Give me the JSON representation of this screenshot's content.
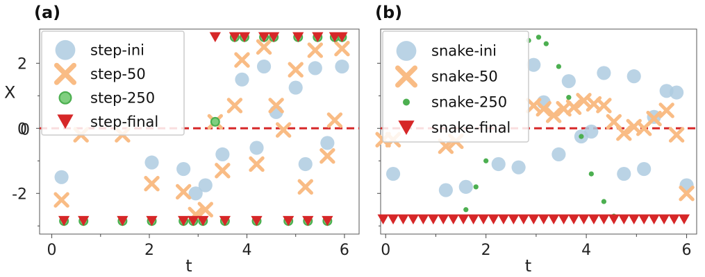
{
  "chart_data": [
    {
      "type": "scatter",
      "panel_label": "(a)",
      "xlabel": "t",
      "ylabel": "X",
      "xlim": [
        -0.25,
        6.3
      ],
      "ylim": [
        -3.25,
        3.05
      ],
      "xticks": [
        "0",
        "2",
        "4",
        "6"
      ],
      "yticks": [
        "-2",
        "0",
        "2"
      ],
      "legend_position": "top-left",
      "reference_line": {
        "y": 0,
        "style": "dashed",
        "color": "#d62728"
      },
      "colors": {
        "ini": "#aecbe0",
        "s50": "#f9bc85",
        "s250": "#4caf50",
        "final": "#d62728"
      },
      "series": [
        {
          "name": "step-ini",
          "marker": "circle",
          "x": [
            0.2,
            2.05,
            2.7,
            2.95,
            3.15,
            3.5,
            3.9,
            4.2,
            4.35,
            4.6,
            5.0,
            5.2,
            5.4,
            5.65,
            5.95
          ],
          "y": [
            -1.5,
            -1.05,
            -1.25,
            -2.0,
            -1.75,
            -0.8,
            1.5,
            -0.6,
            1.9,
            0.5,
            1.25,
            -1.1,
            1.85,
            -0.45,
            1.9
          ]
        },
        {
          "name": "step-50",
          "marker": "x",
          "x": [
            0.2,
            0.6,
            1.45,
            2.05,
            2.7,
            2.95,
            3.15,
            3.35,
            3.5,
            3.75,
            3.9,
            4.2,
            4.35,
            4.6,
            4.75,
            5.0,
            5.2,
            5.4,
            5.65,
            5.8,
            5.95
          ],
          "y": [
            -2.2,
            -0.2,
            -0.2,
            -1.7,
            -1.95,
            -2.65,
            -2.5,
            0.2,
            -1.3,
            0.7,
            2.1,
            -1.1,
            2.5,
            0.7,
            -0.05,
            1.8,
            -1.8,
            2.4,
            -0.85,
            0.25,
            2.45
          ]
        },
        {
          "name": "step-250",
          "marker": "ring",
          "x": [
            0.25,
            0.65,
            1.45,
            2.05,
            2.7,
            2.9,
            3.1,
            3.35,
            3.55,
            3.75,
            3.95,
            4.2,
            4.35,
            4.55,
            4.85,
            5.05,
            5.25,
            5.45,
            5.65,
            5.8,
            5.95
          ],
          "y": [
            -2.85,
            -2.85,
            -2.85,
            -2.85,
            -2.85,
            -2.85,
            -2.85,
            0.2,
            -2.85,
            2.8,
            2.8,
            -2.85,
            2.8,
            2.8,
            -2.85,
            2.8,
            -2.85,
            2.8,
            -2.85,
            2.8,
            2.8
          ]
        },
        {
          "name": "step-final",
          "marker": "triangle-down",
          "x": [
            0.25,
            0.65,
            1.45,
            2.05,
            2.7,
            2.9,
            3.1,
            3.35,
            3.55,
            3.75,
            3.95,
            4.2,
            4.35,
            4.55,
            4.85,
            5.05,
            5.25,
            5.45,
            5.65,
            5.8,
            5.95
          ],
          "y": [
            -2.85,
            -2.85,
            -2.85,
            -2.85,
            -2.85,
            -2.85,
            -2.85,
            2.8,
            -2.85,
            2.8,
            2.8,
            -2.85,
            2.8,
            2.8,
            -2.85,
            2.8,
            -2.85,
            2.8,
            -2.85,
            2.8,
            2.8
          ]
        }
      ]
    },
    {
      "type": "scatter",
      "panel_label": "(b)",
      "xlabel": "t",
      "ylabel": "",
      "xlim": [
        -0.1,
        6.2
      ],
      "ylim": [
        -3.25,
        3.05
      ],
      "xticks": [
        "0",
        "2",
        "4",
        "6"
      ],
      "yticks": [],
      "legend_position": "top-left",
      "reference_line": {
        "y": 0,
        "style": "dashed",
        "color": "#d62728"
      },
      "colors": {
        "ini": "#aecbe0",
        "s50": "#f9bc85",
        "s250": "#4caf50",
        "final": "#d62728"
      },
      "series": [
        {
          "name": "snake-ini",
          "marker": "circle",
          "x": [
            0.15,
            1.2,
            1.6,
            2.25,
            2.65,
            2.95,
            3.15,
            3.45,
            3.65,
            3.9,
            4.1,
            4.35,
            4.75,
            4.95,
            5.15,
            5.35,
            5.6,
            5.8,
            6.0
          ],
          "y": [
            -1.4,
            -1.9,
            -1.8,
            -1.1,
            -1.2,
            1.95,
            0.8,
            -0.8,
            1.45,
            -0.25,
            -0.1,
            1.7,
            -1.4,
            1.6,
            -1.25,
            0.35,
            1.15,
            1.1,
            -1.75
          ]
        },
        {
          "name": "snake-50",
          "marker": "x",
          "x": [
            -0.05,
            0.15,
            1.2,
            1.4,
            2.95,
            3.15,
            3.35,
            3.55,
            3.75,
            3.95,
            4.15,
            4.35,
            4.55,
            4.75,
            4.95,
            5.15,
            5.35,
            5.6,
            5.8,
            6.0
          ],
          "y": [
            -0.35,
            -0.35,
            -0.55,
            -0.4,
            0.7,
            0.6,
            0.4,
            0.6,
            0.65,
            0.85,
            0.75,
            0.7,
            0.2,
            -0.15,
            0.05,
            0.0,
            0.3,
            0.55,
            -0.2,
            -2.0
          ]
        },
        {
          "name": "snake-250",
          "marker": "dot",
          "x": [
            1.6,
            1.8,
            2.0,
            2.85,
            3.05,
            3.2,
            3.45,
            3.65,
            3.9,
            4.1,
            4.35,
            4.55
          ],
          "y": [
            -2.5,
            -1.8,
            -1.0,
            2.7,
            2.8,
            2.6,
            1.9,
            0.95,
            -0.25,
            -1.4,
            -2.25,
            -2.7
          ]
        },
        {
          "name": "snake-final",
          "marker": "triangle-down",
          "x": [
            -0.05,
            0.15,
            0.35,
            0.55,
            0.75,
            0.95,
            1.15,
            1.35,
            1.55,
            1.75,
            1.95,
            2.15,
            2.35,
            2.55,
            2.75,
            2.95,
            3.15,
            3.35,
            3.55,
            3.75,
            3.95,
            4.15,
            4.35,
            4.55,
            4.75,
            4.95,
            5.15,
            5.35,
            5.55,
            5.75,
            5.95
          ],
          "y": [
            -2.8,
            -2.8,
            -2.8,
            -2.8,
            -2.8,
            -2.8,
            -2.8,
            -2.8,
            -2.8,
            -2.8,
            -2.8,
            -2.8,
            -2.8,
            -2.8,
            -2.8,
            -2.8,
            -2.8,
            -2.8,
            -2.8,
            -2.8,
            -2.8,
            -2.8,
            -2.8,
            -2.8,
            -2.8,
            -2.8,
            -2.8,
            -2.8,
            -2.8,
            -2.8,
            -2.8
          ]
        }
      ]
    }
  ]
}
